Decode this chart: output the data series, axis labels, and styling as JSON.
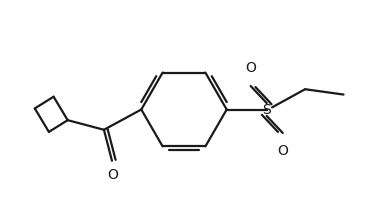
{
  "bg_color": "#ffffff",
  "line_color": "#1a1a1a",
  "line_width": 1.6,
  "fig_width": 3.68,
  "fig_height": 2.19,
  "dpi": 100,
  "xlim": [
    -3.2,
    3.2
  ],
  "ylim": [
    -2.0,
    2.0
  ]
}
